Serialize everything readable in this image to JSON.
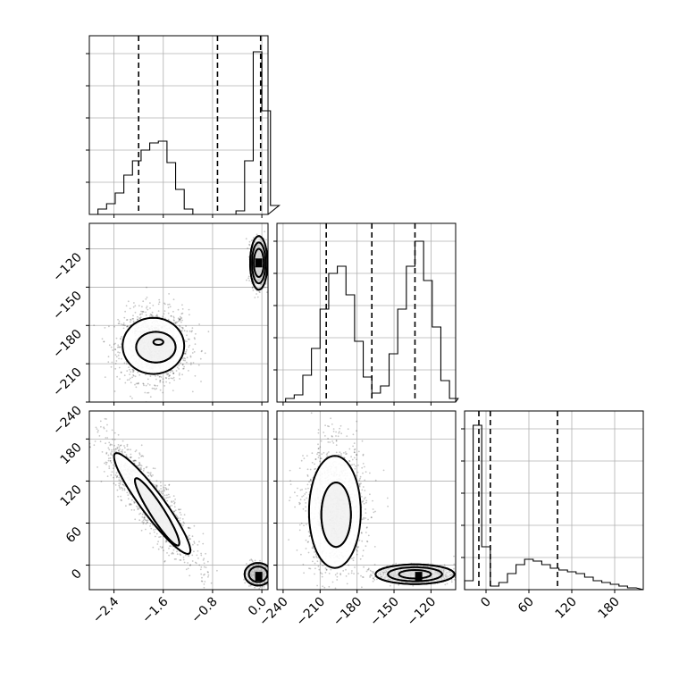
{
  "chart_data": {
    "type": "corner",
    "grid": true,
    "histogram": [
      {
        "x_range": [
          -2.8,
          0.1
        ],
        "dashed_lines": [
          -2.0,
          -0.72,
          -0.02
        ],
        "bins": [
          {
            "x": -2.8,
            "h": 0.0
          },
          {
            "x": -2.66,
            "h": 0.03
          },
          {
            "x": -2.52,
            "h": 0.06
          },
          {
            "x": -2.38,
            "h": 0.12
          },
          {
            "x": -2.24,
            "h": 0.22
          },
          {
            "x": -2.1,
            "h": 0.3
          },
          {
            "x": -1.96,
            "h": 0.36
          },
          {
            "x": -1.82,
            "h": 0.4
          },
          {
            "x": -1.68,
            "h": 0.41
          },
          {
            "x": -1.54,
            "h": 0.29
          },
          {
            "x": -1.4,
            "h": 0.14
          },
          {
            "x": -1.26,
            "h": 0.03
          },
          {
            "x": -1.12,
            "h": 0.0
          },
          {
            "x": -0.98,
            "h": 0.0
          },
          {
            "x": -0.84,
            "h": 0.0
          },
          {
            "x": -0.7,
            "h": 0.0
          },
          {
            "x": -0.56,
            "h": 0.0
          },
          {
            "x": -0.42,
            "h": 0.02
          },
          {
            "x": -0.28,
            "h": 0.3
          },
          {
            "x": -0.14,
            "h": 0.91
          },
          {
            "x": 0.0,
            "h": 0.58
          },
          {
            "x": 0.14,
            "h": 0.05
          }
        ]
      },
      {
        "x_range": [
          -245,
          -100
        ],
        "dashed_lines": [
          -205,
          -168,
          -133
        ],
        "bins": [
          {
            "x": -245,
            "h": 0.0
          },
          {
            "x": -238,
            "h": 0.02
          },
          {
            "x": -231,
            "h": 0.04
          },
          {
            "x": -224,
            "h": 0.15
          },
          {
            "x": -217,
            "h": 0.3
          },
          {
            "x": -210,
            "h": 0.52
          },
          {
            "x": -203,
            "h": 0.72
          },
          {
            "x": -196,
            "h": 0.76
          },
          {
            "x": -189,
            "h": 0.6
          },
          {
            "x": -182,
            "h": 0.34
          },
          {
            "x": -175,
            "h": 0.14
          },
          {
            "x": -168,
            "h": 0.05
          },
          {
            "x": -161,
            "h": 0.09
          },
          {
            "x": -154,
            "h": 0.27
          },
          {
            "x": -147,
            "h": 0.52
          },
          {
            "x": -140,
            "h": 0.76
          },
          {
            "x": -133,
            "h": 0.9
          },
          {
            "x": -126,
            "h": 0.68
          },
          {
            "x": -119,
            "h": 0.42
          },
          {
            "x": -112,
            "h": 0.12
          },
          {
            "x": -105,
            "h": 0.02
          }
        ]
      },
      {
        "x_range": [
          -30,
          220
        ],
        "dashed_lines": [
          -10,
          6,
          100
        ],
        "bins": [
          {
            "x": -30,
            "h": 0.05
          },
          {
            "x": -18,
            "h": 0.92
          },
          {
            "x": -6,
            "h": 0.24
          },
          {
            "x": 6,
            "h": 0.02
          },
          {
            "x": 18,
            "h": 0.04
          },
          {
            "x": 30,
            "h": 0.09
          },
          {
            "x": 42,
            "h": 0.14
          },
          {
            "x": 54,
            "h": 0.17
          },
          {
            "x": 66,
            "h": 0.16
          },
          {
            "x": 78,
            "h": 0.14
          },
          {
            "x": 90,
            "h": 0.12
          },
          {
            "x": 102,
            "h": 0.11
          },
          {
            "x": 114,
            "h": 0.1
          },
          {
            "x": 126,
            "h": 0.09
          },
          {
            "x": 138,
            "h": 0.07
          },
          {
            "x": 150,
            "h": 0.05
          },
          {
            "x": 162,
            "h": 0.04
          },
          {
            "x": 174,
            "h": 0.03
          },
          {
            "x": 186,
            "h": 0.02
          },
          {
            "x": 198,
            "h": 0.01
          }
        ]
      }
    ],
    "scatter": [
      {
        "x_range": [
          -2.8,
          0.1
        ],
        "y_range": [
          -240,
          -100
        ],
        "clusters": [
          {
            "cx": -1.75,
            "cy": -196,
            "sx": 0.28,
            "sy": 14,
            "r": 0,
            "n": 1400
          },
          {
            "cx": -0.05,
            "cy": -131,
            "sx": 0.06,
            "sy": 9,
            "r": 0,
            "n": 900
          }
        ],
        "contours": [
          {
            "cx": -1.76,
            "cy": -196,
            "rx": 0.5,
            "ry": 22,
            "r": 0
          },
          {
            "cx": -1.72,
            "cy": -197,
            "rx": 0.32,
            "ry": 12,
            "r": 0
          },
          {
            "cx": -1.68,
            "cy": -193,
            "rx": 0.08,
            "ry": 2.2,
            "r": 0
          },
          {
            "cx": -0.05,
            "cy": -131,
            "rx": 0.14,
            "ry": 21,
            "r": 0
          },
          {
            "cx": -0.05,
            "cy": -131,
            "rx": 0.11,
            "ry": 16,
            "r": 0
          },
          {
            "cx": -0.05,
            "cy": -131,
            "rx": 0.08,
            "ry": 11,
            "r": 0
          }
        ],
        "peak": {
          "cx": -0.05,
          "cy": -131
        }
      },
      {
        "x_range": [
          -2.8,
          0.1
        ],
        "y_range": [
          -35,
          220
        ],
        "clusters": [
          {
            "cx": -1.8,
            "cy": 90,
            "sx": 0.36,
            "sy": 42,
            "r": -0.88,
            "n": 1400
          },
          {
            "cx": -0.06,
            "cy": -13,
            "sx": 0.09,
            "sy": 7,
            "r": 0,
            "n": 800
          }
        ],
        "contours": [
          {
            "cx": -1.78,
            "cy": 88,
            "rx": 0.62,
            "ry": 72,
            "r": -0.93
          },
          {
            "cx": -1.7,
            "cy": 76,
            "rx": 0.36,
            "ry": 48,
            "r": -0.93
          },
          {
            "cx": -0.06,
            "cy": -13,
            "rx": 0.22,
            "ry": 16,
            "r": 0
          },
          {
            "cx": -0.06,
            "cy": -13,
            "rx": 0.15,
            "ry": 11,
            "r": 0
          }
        ],
        "peak": {
          "cx": -0.05,
          "cy": -16
        }
      },
      {
        "x_range": [
          -245,
          -100
        ],
        "y_range": [
          -35,
          220
        ],
        "clusters": [
          {
            "cx": -198,
            "cy": 80,
            "sx": 12,
            "sy": 46,
            "r": 0,
            "n": 1400
          },
          {
            "cx": -132,
            "cy": -13,
            "sx": 16,
            "sy": 6,
            "r": 0,
            "n": 800
          }
        ],
        "contours": [
          {
            "cx": -198,
            "cy": 76,
            "rx": 21,
            "ry": 80,
            "r": 0
          },
          {
            "cx": -197,
            "cy": 72,
            "rx": 12,
            "ry": 46,
            "r": 0
          },
          {
            "cx": -133,
            "cy": -13,
            "rx": 32,
            "ry": 14,
            "r": 0
          },
          {
            "cx": -133,
            "cy": -13,
            "rx": 22,
            "ry": 10,
            "r": 0
          },
          {
            "cx": -133,
            "cy": -13,
            "rx": 13,
            "ry": 6,
            "r": 0
          }
        ],
        "peak": {
          "cx": -130,
          "cy": -16
        }
      }
    ],
    "x_ticks": [
      {
        "labels": [
          "−2.4",
          "−1.6",
          "−0.8",
          "0.0"
        ],
        "values": [
          -2.4,
          -1.6,
          -0.8,
          0.0
        ]
      },
      {
        "labels": [
          "−240",
          "−210",
          "−180",
          "−150",
          "−120"
        ],
        "values": [
          -240,
          -210,
          -180,
          -150,
          -120
        ]
      },
      {
        "labels": [
          "0",
          "60",
          "120",
          "180"
        ],
        "values": [
          0,
          60,
          120,
          180
        ]
      }
    ],
    "y_ticks": [
      {
        "labels": [
          "−240",
          "−210",
          "−180",
          "−150",
          "−120"
        ],
        "values": [
          -240,
          -210,
          -180,
          -150,
          -120
        ]
      },
      {
        "labels": [
          "0",
          "60",
          "120",
          "180"
        ],
        "values": [
          0,
          60,
          120,
          180
        ]
      }
    ]
  }
}
